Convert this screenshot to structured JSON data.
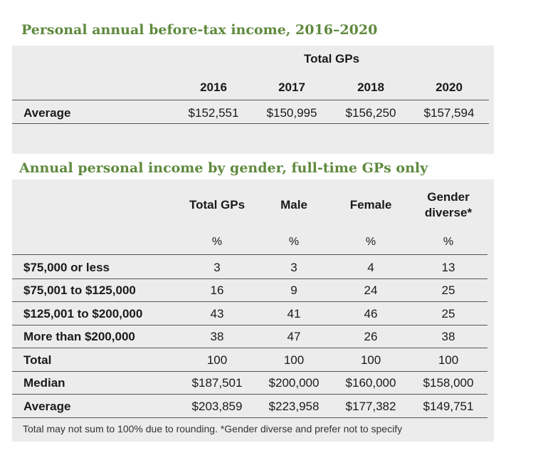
{
  "table1": {
    "title": "Personal annual before-tax income, 2016–2020",
    "group_header": "Total GPs",
    "years": [
      "2016",
      "2017",
      "2018",
      "2020"
    ],
    "rows": [
      {
        "label": "Average",
        "values": [
          "$152,551",
          "$150,995",
          "$156,250",
          "$157,594"
        ]
      }
    ]
  },
  "table2": {
    "title": "Annual personal income by gender, full-time GPs only",
    "columns": [
      {
        "label": "Total GPs",
        "unit": "%"
      },
      {
        "label": "Male",
        "unit": "%"
      },
      {
        "label": "Female",
        "unit": "%"
      },
      {
        "label_line1": "Gender",
        "label_line2": "diverse*",
        "unit": "%"
      }
    ],
    "rows": [
      {
        "label": "$75,000 or less",
        "values": [
          "3",
          "3",
          "4",
          "13"
        ]
      },
      {
        "label": "$75,001 to $125,000",
        "values": [
          "16",
          "9",
          "24",
          "25"
        ]
      },
      {
        "label": "$125,001 to $200,000",
        "values": [
          "43",
          "41",
          "46",
          "25"
        ]
      },
      {
        "label": "More than $200,000",
        "values": [
          "38",
          "47",
          "26",
          "38"
        ]
      },
      {
        "label": "Total",
        "values": [
          "100",
          "100",
          "100",
          "100"
        ]
      },
      {
        "label": "Median",
        "values": [
          "$187,501",
          "$200,000",
          "$160,000",
          "$158,000"
        ]
      },
      {
        "label": "Average",
        "values": [
          "$203,859",
          "$223,958",
          "$177,382",
          "$149,751"
        ]
      }
    ],
    "footnote": "Total may not sum to 100% due to rounding. *Gender diverse and prefer not to specify"
  }
}
